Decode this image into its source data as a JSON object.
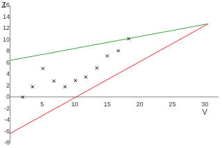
{
  "chart_data": {
    "type": "scatter",
    "x_label": "V",
    "y_label": "Z",
    "xlim": [
      0,
      32
    ],
    "ylim": [
      -8,
      16
    ],
    "xticks": [
      5,
      10,
      15,
      20,
      25,
      30
    ],
    "yticks": [
      -8,
      -6,
      -4,
      -2,
      0,
      2,
      4,
      6,
      8,
      10,
      12,
      14,
      16
    ],
    "grid": false,
    "series": [
      {
        "type": "scatter",
        "color": "#000000",
        "marker": "x",
        "x": [
          2.0,
          3.5,
          5.1,
          6.8,
          8.5,
          10.1,
          11.7,
          13.4,
          15.0,
          16.7,
          18.3
        ],
        "values": [
          0.0,
          1.8,
          5.0,
          2.8,
          1.8,
          2.9,
          3.5,
          5.1,
          7.2,
          8.1,
          10.2
        ]
      },
      {
        "type": "line",
        "color": "#3c9c3c",
        "line_style": "solid",
        "x": [
          0,
          30.5
        ],
        "values": [
          6.4,
          12.8
        ]
      },
      {
        "type": "line",
        "color": "#e02828",
        "line_style": "solid",
        "x": [
          0,
          30.5
        ],
        "values": [
          -6.4,
          12.8
        ]
      }
    ]
  }
}
